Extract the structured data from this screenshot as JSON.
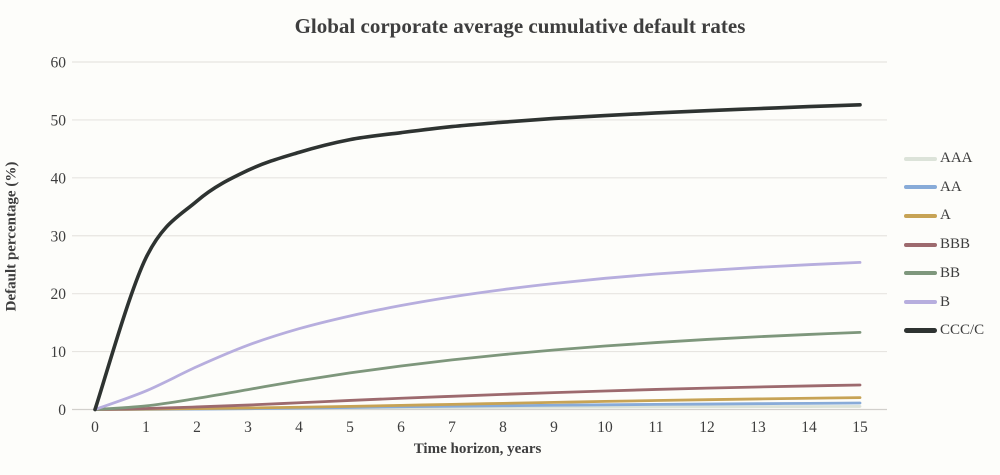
{
  "chart_data": {
    "type": "line",
    "title": "Global corporate average cumulative default rates",
    "xlabel": "Time horizon, years",
    "ylabel": "Default percentage (%)",
    "x": [
      0,
      1,
      2,
      3,
      4,
      5,
      6,
      7,
      8,
      9,
      10,
      11,
      12,
      13,
      14,
      15
    ],
    "xticks": [
      0,
      1,
      2,
      3,
      4,
      5,
      6,
      7,
      8,
      9,
      10,
      11,
      12,
      13,
      14,
      15
    ],
    "yticks": [
      0,
      10,
      20,
      30,
      40,
      50,
      60
    ],
    "xlim": [
      0,
      15
    ],
    "ylim": [
      0,
      60
    ],
    "grid": "horizontal",
    "legend_position": "right",
    "series": [
      {
        "name": "AAA",
        "color": "#dce3d9",
        "line_width": 2.8,
        "values": [
          0,
          0.03,
          0.1,
          0.17,
          0.24,
          0.29,
          0.33,
          0.36,
          0.39,
          0.42,
          0.44,
          0.46,
          0.48,
          0.5,
          0.51,
          0.53
        ]
      },
      {
        "name": "AA",
        "color": "#88abd8",
        "line_width": 2.8,
        "values": [
          0,
          0.02,
          0.07,
          0.14,
          0.25,
          0.36,
          0.47,
          0.57,
          0.65,
          0.73,
          0.81,
          0.88,
          0.94,
          1.0,
          1.06,
          1.12
        ]
      },
      {
        "name": "A",
        "color": "#c7a355",
        "line_width": 2.8,
        "values": [
          0,
          0.06,
          0.15,
          0.26,
          0.39,
          0.54,
          0.71,
          0.89,
          1.06,
          1.23,
          1.4,
          1.55,
          1.69,
          1.82,
          1.94,
          2.05
        ]
      },
      {
        "name": "BBB",
        "color": "#9d6a6e",
        "line_width": 2.8,
        "values": [
          0,
          0.16,
          0.44,
          0.77,
          1.16,
          1.56,
          1.94,
          2.28,
          2.61,
          2.92,
          3.2,
          3.46,
          3.69,
          3.89,
          4.07,
          4.23
        ]
      },
      {
        "name": "BB",
        "color": "#7e977c",
        "line_width": 2.8,
        "values": [
          0,
          0.62,
          1.92,
          3.44,
          4.96,
          6.32,
          7.52,
          8.57,
          9.48,
          10.27,
          10.96,
          11.56,
          12.1,
          12.56,
          12.96,
          13.32
        ]
      },
      {
        "name": "B",
        "color": "#b7aede",
        "line_width": 2.8,
        "values": [
          0,
          3.2,
          7.4,
          11.1,
          13.95,
          16.15,
          17.95,
          19.45,
          20.7,
          21.75,
          22.65,
          23.4,
          24.0,
          24.55,
          25.0,
          25.4
        ]
      },
      {
        "name": "CCC/C",
        "color": "#2e3331",
        "line_width": 3.6,
        "values": [
          0,
          26.2,
          36.0,
          41.3,
          44.4,
          46.6,
          47.8,
          48.85,
          49.6,
          50.25,
          50.75,
          51.2,
          51.6,
          51.95,
          52.3,
          52.6
        ]
      }
    ],
    "colors": {
      "background": "#fdfdfa",
      "gridline": "#e7e5e1",
      "axis_line": "#d2d0cc",
      "text": "#3e3e3e"
    }
  }
}
